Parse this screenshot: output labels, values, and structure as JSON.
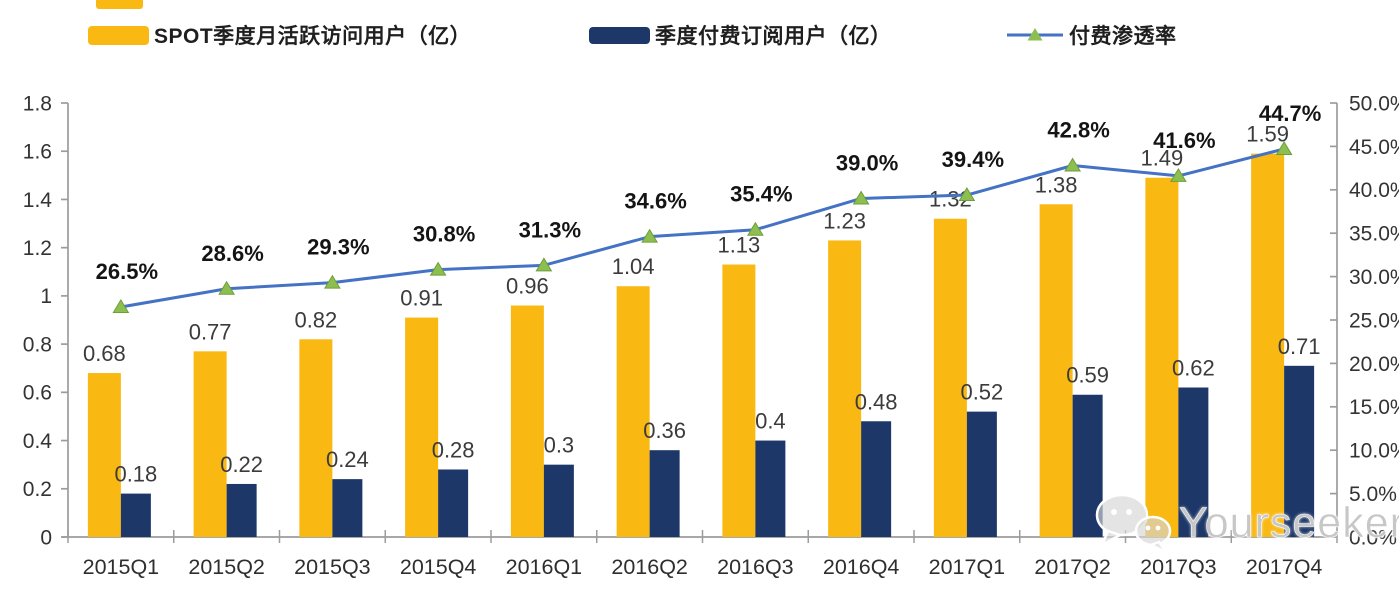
{
  "legend": [
    {
      "label": "SPOT季度月活跃访问用户（亿）",
      "color": "#F9B812",
      "type": "bar"
    },
    {
      "label": "季度付费订阅用户（亿）",
      "color": "#1C3768",
      "type": "bar"
    },
    {
      "label": "付费渗透率",
      "color": "#4472C4",
      "marker_color": "#8CBF50",
      "type": "line"
    }
  ],
  "watermark": {
    "text": "Yourseeker",
    "icon": "wechat-icon"
  },
  "chart_data": {
    "type": "bar+line combo",
    "categories": [
      "2015Q1",
      "2015Q2",
      "2015Q3",
      "2015Q4",
      "2016Q1",
      "2016Q2",
      "2016Q3",
      "2016Q4",
      "2017Q1",
      "2017Q2",
      "2017Q3",
      "2017Q4"
    ],
    "series": [
      {
        "name": "SPOT季度月活跃访问用户（亿）",
        "type": "bar",
        "axis": "left",
        "values": [
          0.68,
          0.77,
          0.82,
          0.91,
          0.96,
          1.04,
          1.13,
          1.23,
          1.32,
          1.38,
          1.49,
          1.59
        ],
        "labels": [
          "0.68",
          "0.77",
          "0.82",
          "0.91",
          "0.96",
          "1.04",
          "1.13",
          "1.23",
          "1.32",
          "1.38",
          "1.49",
          "1.59"
        ]
      },
      {
        "name": "季度付费订阅用户（亿）",
        "type": "bar",
        "axis": "left",
        "values": [
          0.18,
          0.22,
          0.24,
          0.28,
          0.3,
          0.36,
          0.4,
          0.48,
          0.52,
          0.59,
          0.62,
          0.71
        ],
        "labels": [
          "0.18",
          "0.22",
          "0.24",
          "0.28",
          "0.3",
          "0.36",
          "0.4",
          "0.48",
          "0.52",
          "0.59",
          "0.62",
          "0.71"
        ]
      },
      {
        "name": "付费渗透率",
        "type": "line",
        "axis": "right",
        "values_pct": [
          26.5,
          28.6,
          29.3,
          30.8,
          31.3,
          34.6,
          35.4,
          39.0,
          39.4,
          42.8,
          41.6,
          44.7
        ],
        "labels": [
          "26.5%",
          "28.6%",
          "29.3%",
          "30.8%",
          "31.3%",
          "34.6%",
          "35.4%",
          "39.0%",
          "39.4%",
          "42.8%",
          "41.6%",
          "44.7%"
        ]
      }
    ],
    "left_axis": {
      "min": 0,
      "max": 1.8,
      "step": 0.2,
      "ticks": [
        "0",
        "0.2",
        "0.4",
        "0.6",
        "0.8",
        "1",
        "1.2",
        "1.4",
        "1.6",
        "1.8"
      ]
    },
    "right_axis": {
      "min": 0,
      "max": 50,
      "step": 5,
      "ticks": [
        "0.0%",
        "5.0%",
        "10.0%",
        "15.0%",
        "20.0%",
        "25.0%",
        "30.0%",
        "35.0%",
        "40.0%",
        "45.0%",
        "50.0%"
      ]
    },
    "grid": false,
    "legend_position": "top",
    "colors": {
      "mau_bar": "#F9B812",
      "paid_bar": "#1C3768",
      "line": "#4472C4",
      "marker": "#8CBF50",
      "marker_edge": "#6E9E3B",
      "axis": "#9c9c9c"
    }
  }
}
